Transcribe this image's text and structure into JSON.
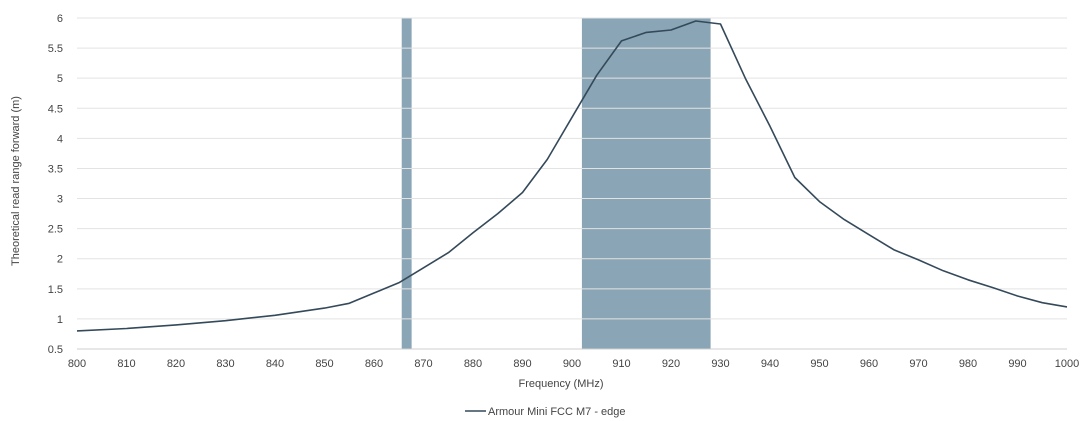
{
  "chart_data": {
    "type": "line",
    "title": "",
    "xlabel": "Frequency (MHz)",
    "ylabel": "Theoretical read range forward (m)",
    "xlim": [
      800,
      1000
    ],
    "ylim": [
      0.5,
      6
    ],
    "x_ticks": [
      800,
      810,
      820,
      830,
      840,
      850,
      860,
      870,
      880,
      890,
      900,
      910,
      920,
      930,
      940,
      950,
      960,
      970,
      980,
      990,
      1000
    ],
    "y_ticks": [
      0.5,
      1,
      1.5,
      2,
      2.5,
      3,
      3.5,
      4,
      4.5,
      5,
      5.5,
      6
    ],
    "grid": "horizontal",
    "legend_position": "bottom",
    "highlight_bands": [
      {
        "x_start": 865.6,
        "x_end": 867.6,
        "color": "#8aa5b5"
      },
      {
        "x_start": 902,
        "x_end": 928,
        "color": "#8aa5b5"
      }
    ],
    "series": [
      {
        "name": "Armour Mini FCC M7 - edge",
        "color": "#34495a",
        "x": [
          800,
          810,
          820,
          830,
          840,
          850,
          855,
          860,
          865,
          870,
          875,
          880,
          885,
          890,
          895,
          900,
          905,
          910,
          915,
          920,
          925,
          930,
          935,
          940,
          945,
          950,
          955,
          960,
          965,
          970,
          975,
          980,
          985,
          990,
          995,
          1000
        ],
        "y": [
          0.8,
          0.84,
          0.9,
          0.97,
          1.06,
          1.18,
          1.26,
          1.43,
          1.6,
          1.85,
          2.1,
          2.43,
          2.75,
          3.1,
          3.65,
          4.35,
          5.05,
          5.62,
          5.76,
          5.8,
          5.95,
          5.9,
          5.0,
          4.2,
          3.35,
          2.95,
          2.65,
          2.4,
          2.15,
          1.98,
          1.8,
          1.65,
          1.52,
          1.38,
          1.27,
          1.2
        ]
      }
    ]
  },
  "colors": {
    "line": "#34495a",
    "band": "#8aa5b5",
    "grid": "#e3e3e3",
    "text": "#444444"
  }
}
